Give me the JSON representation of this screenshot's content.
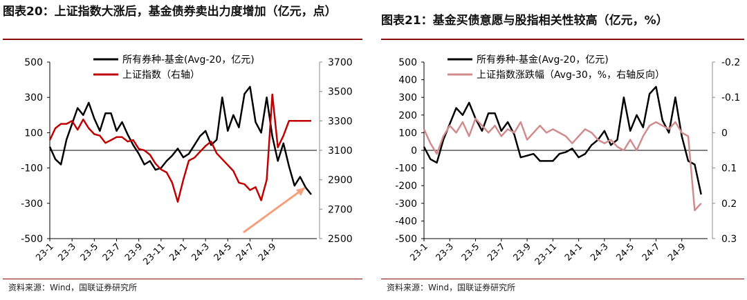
{
  "panels": [
    {
      "title": "图表20：上证指数大涨后，基金债券卖出力度增加（亿元，点）",
      "source": "资料来源：Wind，国联证券研究所"
    },
    {
      "title": "图表21：基金买债意愿与股指相关性较高（亿元，%）",
      "source": "资料来源：Wind，国联证券研究所"
    }
  ],
  "chart_data": [
    {
      "type": "line",
      "title": "图表20：上证指数大涨后，基金债券卖出力度增加（亿元，点）",
      "x_ticks": [
        "23-1",
        "23-3",
        "23-5",
        "23-7",
        "23-9",
        "23-11",
        "24-1",
        "24-3",
        "24-5",
        "24-7",
        "24-9"
      ],
      "y_left": {
        "range": [
          -500,
          500
        ],
        "ticks": [
          -500,
          -300,
          -100,
          100,
          300,
          500
        ]
      },
      "y_right": {
        "range": [
          2500,
          3700
        ],
        "ticks": [
          2500,
          2700,
          2900,
          3100,
          3300,
          3500,
          3700
        ]
      },
      "legend": "top-center",
      "annotations": [
        "arrow pointing to 24-9 spike"
      ],
      "series": [
        {
          "name": "所有券种-基金(Avg-20，亿元)",
          "color": "#000000",
          "axis": "left",
          "x": [
            0,
            0.5,
            1,
            1.5,
            2,
            2.5,
            3,
            3.5,
            4,
            4.5,
            5,
            5.5,
            6,
            6.5,
            7,
            7.5,
            8,
            8.5,
            9,
            9.5,
            10,
            10.5,
            11,
            11.5,
            12,
            12.5,
            13,
            13.5,
            14,
            14.5,
            15,
            15.5,
            16,
            16.5,
            17,
            17.5,
            18,
            18.5,
            19,
            19.5,
            20,
            20.5,
            21,
            21.5,
            22,
            22.5,
            23,
            23.5
          ],
          "values": [
            20,
            -50,
            -80,
            60,
            150,
            240,
            200,
            270,
            180,
            110,
            210,
            210,
            110,
            160,
            90,
            30,
            -20,
            -80,
            -60,
            -110,
            -100,
            -60,
            -30,
            10,
            -40,
            -20,
            30,
            80,
            110,
            30,
            60,
            300,
            110,
            200,
            130,
            320,
            360,
            160,
            100,
            300,
            80,
            -60,
            40,
            -90,
            -200,
            -150,
            -210,
            -250
          ]
        },
        {
          "name": "上证指数（右轴）",
          "color": "#c00000",
          "axis": "right",
          "x": [
            0,
            0.5,
            1,
            1.5,
            2,
            2.5,
            3,
            3.5,
            4,
            4.5,
            5,
            5.5,
            6,
            6.5,
            7,
            7.5,
            8,
            8.5,
            9,
            9.5,
            10,
            10.5,
            11,
            11.5,
            12,
            12.5,
            13,
            13.5,
            14,
            14.5,
            15,
            15.5,
            16,
            16.5,
            17,
            17.5,
            18,
            18.5,
            19,
            19.5,
            20,
            20.5,
            21,
            21.5,
            22,
            22.5,
            23,
            23.5
          ],
          "values": [
            3170,
            3250,
            3280,
            3280,
            3300,
            3240,
            3310,
            3250,
            3210,
            3200,
            3150,
            3170,
            3190,
            3190,
            3160,
            3170,
            3110,
            3100,
            3070,
            3010,
            2970,
            2950,
            2880,
            2750,
            2900,
            3030,
            3050,
            3090,
            3130,
            3160,
            3080,
            3040,
            3000,
            2960,
            2880,
            2870,
            2830,
            2850,
            2760,
            2900,
            3480,
            3120,
            3200,
            3300,
            3300,
            3300,
            3300,
            3300
          ]
        }
      ]
    },
    {
      "type": "line",
      "title": "图表21：基金买债意愿与股指相关性较高（亿元，%）",
      "x_ticks": [
        "23-1",
        "23-3",
        "23-5",
        "23-7",
        "23-9",
        "23-11",
        "24-1",
        "24-3",
        "24-5",
        "24-7",
        "24-9"
      ],
      "y_left": {
        "range": [
          -500,
          500
        ],
        "ticks": [
          -500,
          -400,
          -300,
          -200,
          -100,
          0,
          100,
          200,
          300,
          400,
          500
        ]
      },
      "y_right": {
        "range": [
          -0.2,
          0.3
        ],
        "ticks": [
          -0.2,
          -0.1,
          0,
          0.1,
          0.2,
          0.3
        ],
        "inverted": true
      },
      "legend": "top-center",
      "series": [
        {
          "name": "所有券种-基金(Avg-20，亿元)",
          "color": "#000000",
          "axis": "left",
          "x": [
            0,
            0.5,
            1,
            1.5,
            2,
            2.5,
            3,
            3.5,
            4,
            4.5,
            5,
            5.5,
            6,
            6.5,
            7,
            7.5,
            8,
            8.5,
            9,
            9.5,
            10,
            10.5,
            11,
            11.5,
            12,
            12.5,
            13,
            13.5,
            14,
            14.5,
            15,
            15.5,
            16,
            16.5,
            17,
            17.5,
            18,
            18.5,
            19,
            19.5,
            20,
            20.5,
            21,
            21.5
          ],
          "values": [
            20,
            -50,
            -70,
            60,
            150,
            240,
            200,
            270,
            180,
            110,
            210,
            210,
            110,
            160,
            90,
            -40,
            -30,
            -20,
            -60,
            -60,
            -60,
            -20,
            -10,
            10,
            -40,
            -20,
            30,
            60,
            110,
            30,
            60,
            300,
            110,
            200,
            130,
            320,
            360,
            170,
            100,
            300,
            80,
            -60,
            -80,
            -250
          ]
        },
        {
          "name": "上证指数涨跌幅（Avg-30，%，右轴反向）",
          "color": "#d08c8c",
          "axis": "right",
          "x": [
            0,
            0.5,
            1,
            1.5,
            2,
            2.5,
            3,
            3.5,
            4,
            4.5,
            5,
            5.5,
            6,
            6.5,
            7,
            7.5,
            8,
            8.5,
            9,
            9.5,
            10,
            10.5,
            11,
            11.5,
            12,
            12.5,
            13,
            13.5,
            14,
            14.5,
            15,
            15.5,
            16,
            16.5,
            17,
            17.5,
            18,
            18.5,
            19,
            19.5,
            20,
            20.5,
            21,
            21.5
          ],
          "values": [
            -0.01,
            0.03,
            0.06,
            0.01,
            -0.02,
            0.0,
            -0.03,
            0.01,
            -0.04,
            -0.02,
            0.0,
            -0.02,
            0.01,
            -0.01,
            0.0,
            -0.03,
            0.02,
            0.0,
            -0.02,
            0.0,
            -0.01,
            0.0,
            0.01,
            0.03,
            0.01,
            -0.01,
            0.0,
            0.02,
            0.03,
            0.02,
            0.04,
            0.05,
            0.02,
            0.05,
            0.01,
            -0.02,
            -0.03,
            -0.02,
            -0.01,
            -0.03,
            0.0,
            0.01,
            0.22,
            0.2
          ]
        }
      ]
    }
  ]
}
